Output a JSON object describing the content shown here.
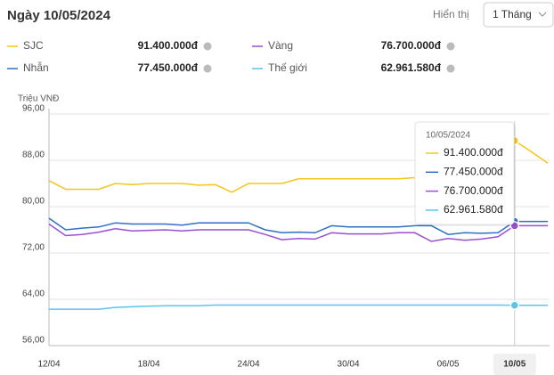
{
  "chart_data": {
    "type": "line",
    "title": "Ngày 10/05/2024",
    "display_label": "Hiển thị",
    "period": "1 Tháng",
    "y_axis_label": "Triệu VNĐ",
    "ylim": [
      56,
      96
    ],
    "yticks": [
      {
        "value": 56,
        "label": "56,00"
      },
      {
        "value": 64,
        "label": "64,00"
      },
      {
        "value": 72,
        "label": "72,00"
      },
      {
        "value": 80,
        "label": "80,00"
      },
      {
        "value": 88,
        "label": "88,00"
      },
      {
        "value": 96,
        "label": "96,00"
      }
    ],
    "grid": true,
    "categories": [
      "12/04",
      null,
      null,
      null,
      null,
      null,
      "18/04",
      null,
      null,
      null,
      null,
      null,
      "24/04",
      null,
      null,
      null,
      null,
      null,
      "30/04",
      null,
      null,
      null,
      null,
      null,
      "06/05",
      null,
      null,
      null,
      "10/05",
      null,
      null
    ],
    "series": [
      {
        "name": "SJC",
        "color": "#f5c518",
        "value_label": "91.400.000đ",
        "values": [
          84.5,
          83,
          83,
          83,
          84,
          83.8,
          84,
          84,
          84,
          83.7,
          83.8,
          82.5,
          84,
          84,
          84,
          84.8,
          84.8,
          84.8,
          84.8,
          84.8,
          84.8,
          84.8,
          85,
          85.8,
          85.8,
          85.8,
          85.8,
          85.8,
          91.4,
          89.5,
          87.5
        ]
      },
      {
        "name": "Nhẫn",
        "color": "#2f6fc8",
        "value_label": "77.450.000đ",
        "values": [
          78,
          76,
          76.3,
          76.5,
          77.2,
          77,
          77,
          77,
          76.8,
          77.2,
          77.2,
          77.2,
          77.2,
          76,
          75.5,
          75.6,
          75.5,
          76.7,
          76.5,
          76.5,
          76.5,
          76.5,
          76.7,
          76.7,
          75.2,
          75.5,
          75.4,
          75.5,
          77.45,
          77.45,
          77.45
        ]
      },
      {
        "name": "Vàng",
        "color": "#9b4fd1",
        "value_label": "76.700.000đ",
        "values": [
          77,
          75,
          75.2,
          75.6,
          76.2,
          75.8,
          75.9,
          76,
          75.8,
          76,
          76,
          76,
          76,
          75.2,
          74.3,
          74.5,
          74.4,
          75.5,
          75.3,
          75.3,
          75.3,
          75.5,
          75.5,
          74,
          74.5,
          74.2,
          74.4,
          74.8,
          76.7,
          76.7,
          76.7
        ]
      },
      {
        "name": "Thế giới",
        "color": "#5bc4e8",
        "value_label": "62.961.580đ",
        "values": [
          62.3,
          62.3,
          62.3,
          62.3,
          62.6,
          62.7,
          62.8,
          62.9,
          62.9,
          62.9,
          63,
          63,
          63,
          63,
          63,
          63,
          63,
          63,
          63,
          63,
          63,
          63,
          63,
          63,
          63,
          63,
          63,
          63,
          62.96,
          62.96,
          62.96
        ]
      }
    ],
    "tooltip": {
      "date": "10/05/2024"
    }
  }
}
